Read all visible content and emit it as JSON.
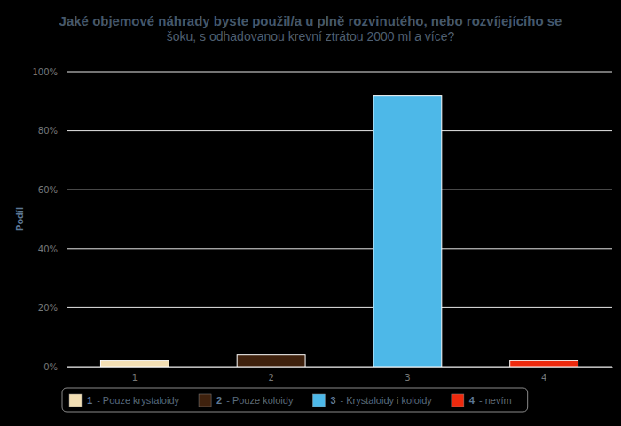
{
  "chart_data": {
    "type": "bar",
    "title": "Jaké objemové náhrady byste použil/a u plně rozvinutého, nebo rozvíjejícího se",
    "subtitle": "šoku, s odhadovanou krevní ztrátou 2000 ml a více?",
    "y_label": "Podíl",
    "categories": [
      "1",
      "2",
      "3",
      "4"
    ],
    "values": [
      2,
      4,
      92,
      2
    ],
    "colors": [
      "#f3dfb4",
      "#3f210d",
      "#4db8e8",
      "#ee2a0e"
    ],
    "legend_labels": [
      "- Pouze krystaloidy",
      "- Pouze koloidy",
      "- Krystaloidy i koloidy",
      "- nevím"
    ],
    "legend": "bottom",
    "ylim": [
      0,
      100
    ],
    "yticks": [
      {
        "value": 0,
        "label": "0%"
      },
      {
        "value": 20,
        "label": "20%"
      },
      {
        "value": 40,
        "label": "40%"
      },
      {
        "value": 60,
        "label": "60%"
      },
      {
        "value": 80,
        "label": "80%"
      },
      {
        "value": 100,
        "label": "100%"
      }
    ],
    "grid": true
  }
}
